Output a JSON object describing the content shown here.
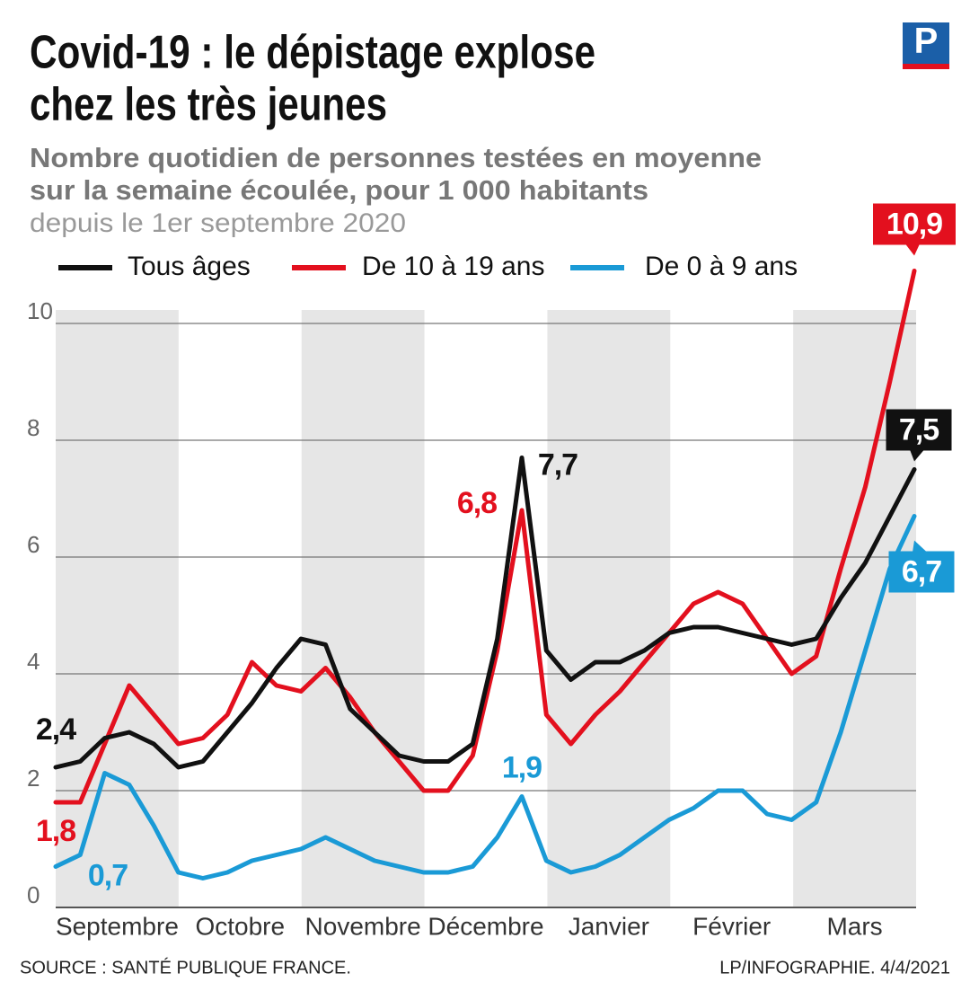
{
  "chart_data": {
    "type": "line",
    "logo": "P",
    "title": [
      "Covid-19 : le dépistage explose",
      "chez les très jeunes"
    ],
    "subtitle": [
      "Nombre quotidien de personnes testées en moyenne",
      "sur la semaine écoulée, pour 1 000 habitants"
    ],
    "note": "depuis le 1er septembre 2020",
    "source": "SOURCE : SANTÉ PUBLIQUE FRANCE.",
    "credit": "LP/INFOGRAPHIE.  4/4/2021",
    "x": [
      "Septembre",
      "Septembre",
      "Septembre",
      "Septembre",
      "Septembre",
      "Septembre",
      "Octobre",
      "Octobre",
      "Octobre",
      "Octobre",
      "Octobre",
      "Novembre",
      "Novembre",
      "Novembre",
      "Novembre",
      "Novembre",
      "Décembre",
      "Décembre",
      "Décembre",
      "Décembre",
      "Décembre",
      "Janvier",
      "Janvier",
      "Janvier",
      "Janvier",
      "Janvier",
      "Février",
      "Février",
      "Février",
      "Février",
      "Février",
      "Mars",
      "Mars",
      "Mars",
      "Mars",
      "Mars"
    ],
    "ylim": [
      0,
      11
    ],
    "yticks": [
      0,
      2,
      4,
      6,
      8,
      10
    ],
    "grid": true,
    "series": [
      {
        "name": "De 0 à 9 ans",
        "color": "#1a9ad6",
        "values": [
          0.7,
          0.9,
          2.3,
          2.1,
          1.4,
          0.6,
          0.5,
          0.6,
          0.8,
          0.9,
          1.0,
          1.2,
          1.0,
          0.8,
          0.7,
          0.6,
          0.6,
          0.7,
          1.2,
          1.9,
          0.8,
          0.6,
          0.7,
          0.9,
          1.2,
          1.5,
          1.7,
          2.0,
          2.0,
          1.6,
          1.5,
          1.8,
          3.0,
          4.4,
          5.8,
          6.7
        ],
        "value_labels": [
          "0,7",
          null,
          null,
          null,
          null,
          null,
          null,
          null,
          null,
          null,
          null,
          null,
          null,
          null,
          null,
          null,
          null,
          null,
          null,
          "1,9",
          null,
          null,
          null,
          null,
          null,
          null,
          null,
          null,
          null,
          null,
          null,
          null,
          null,
          null,
          null,
          "6,7"
        ]
      },
      {
        "name": "De 10 à 19 ans",
        "color": "#e3101e",
        "values": [
          1.8,
          1.8,
          2.8,
          3.8,
          3.3,
          2.8,
          2.9,
          3.3,
          4.2,
          3.8,
          3.7,
          4.1,
          3.6,
          3.0,
          2.5,
          2.0,
          2.0,
          2.6,
          4.4,
          6.8,
          3.3,
          2.8,
          3.3,
          3.7,
          4.2,
          4.7,
          5.2,
          5.4,
          5.2,
          4.6,
          4.0,
          4.3,
          5.8,
          7.2,
          9.0,
          10.9
        ],
        "value_labels": [
          "1,8",
          null,
          null,
          null,
          null,
          null,
          null,
          null,
          null,
          null,
          null,
          null,
          null,
          null,
          null,
          null,
          null,
          null,
          null,
          "6,8",
          null,
          null,
          null,
          null,
          null,
          null,
          null,
          null,
          null,
          null,
          null,
          null,
          null,
          null,
          null,
          "10,9"
        ]
      },
      {
        "name": "Tous âges",
        "color": "#111111",
        "values": [
          2.4,
          2.5,
          2.9,
          3.0,
          2.8,
          2.4,
          2.5,
          3.0,
          3.5,
          4.1,
          4.6,
          4.5,
          3.4,
          3.0,
          2.6,
          2.5,
          2.5,
          2.8,
          4.6,
          7.7,
          4.4,
          3.9,
          4.2,
          4.2,
          4.4,
          4.7,
          4.8,
          4.8,
          4.7,
          4.6,
          4.5,
          4.6,
          5.3,
          5.9,
          6.7,
          7.5
        ],
        "value_labels": [
          "2,4",
          null,
          null,
          null,
          null,
          null,
          null,
          null,
          null,
          null,
          null,
          null,
          null,
          null,
          null,
          null,
          null,
          null,
          null,
          "7,7",
          null,
          null,
          null,
          null,
          null,
          null,
          null,
          null,
          null,
          null,
          null,
          null,
          null,
          null,
          null,
          "7,5"
        ]
      }
    ]
  }
}
